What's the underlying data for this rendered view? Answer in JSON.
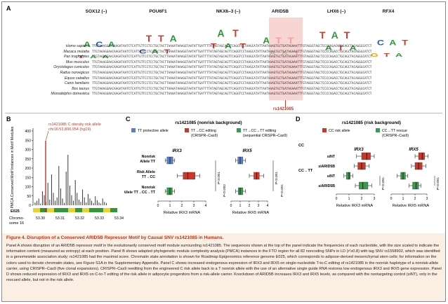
{
  "panel_a": {
    "label": "A",
    "tfs": [
      "SOX12 (–)",
      "POU6F1",
      "NKX6–3 (–)",
      "ARID5B",
      "LHX6 (–)",
      "RFX4"
    ],
    "logos": [
      "TAACAA",
      "CTATTA",
      "TAATT",
      "AATATT",
      "TAATTA",
      "GCTAAT"
    ],
    "species": [
      "Homo sapiens",
      "Macaca mulatta",
      "Pan troglodytes",
      "Mus musculus",
      "Oryctolagus cuniculus",
      "Rattus norvegicus",
      "Equus caballus",
      "Canis familiaris",
      "Bos taurus",
      "Monodelphis domestica"
    ],
    "sequences": [
      "TTGTAAAGGAACAAGATAATCTCATTGTTCCTCCTGCTACTTAAAATAAAGGTAATATTGATTTTATAGTAGCAGTTCAGGTCCTAAGCATATTAATAAAGTGCTGATAGAAATTTGTAGGGTAGCTCCCCAGACCTGCAGCTACAGGGCATCT",
      "TTGTAAAGGAACAAGATAATCTCATTGTTCCTCCTGCTACTTAAAATAAAGGTAATATTGATTTTATAGTAGCAGTTCAGGTCCTAAGCATATTAATAAAGTGCTGATAGAAATTTGTAGGGTAGCTCCCCAGACCTGCAGCTACAGGGCATCT",
      "TTGTAAAGGAACAAGATAATCTCATTGTTCCTCCTGCTACTTAAAATAAAGGTAATATTGATTTTATAGTAGCAGTTCAGGTCCTAAGCATATTAATAAAGTGCTGATAGAAATTTGTAGGGTAGCTCCCCAGACCTGCAGCTACAGGGCATCT",
      "TTGTAAAGGAACAAGATAATCTCATTGTTCCTCCTGCTACTTAAAATAAAGGTAATATTGATTTTATAGTAGCAGTTCAGGTCCTAAGCATATTAATAAAGTGCTGATAGAAATTTGTAGGGTAGCTCCCCAGACCTGCAGCTACAGGGCATCT",
      "TTGTAAAGGAACAAGATAATCTCATTGTTCCTCCTGCTACTTAAAATAAAGGTAATATTGATTTTATAGTAGCAGTTCAGGTCCTAAGCATATTAATAAAGTGCTGATAGAAATTTGTAGGGTAGCTCCCCAGACCTGCAGCTACAGGGCATCT",
      "TTGTAAAGGAACAAGATAATCTCATTGTTCCTCCTGCTACTTAAAATAAAGGTAATATTGATTTTATAGTAGCAGTTCAGGTCCTAAGCATATTAATAAAGTGCTGATAGAAATTTGTAGGGTAGCTCCCCAGACCTGCAGCTACAGGGCATCT",
      "TTGTAAAGGAACAAGATAATCTCATTGTTCCTCCTGCTACTTAAAATAAAGGTAATATTGATTTTATAGTAGCAGTTCAGGTCCTAAGCATATTAATAAAGTGCTGATAGAAATTTGTAGGGTAGCTCCCCAGACCTGCAGCTACAGGGCATCT",
      "TTGTAAAGGAACAAGATAATCTCATTGTTCCTCCTGCTACTTAAAATAAAGGTAATATTGATTTTATAGTAGCAGTTCAGGTCCTAAGCATATTAATAAAGTGCTGATAGAAATTTGTAGGGTAGCTCCCCAGACCTGCAGCTACAGGGCATCT",
      "TTGTAAAGGAACAAGATAATCTCATTGTTCCTCCTGCTACTTAAAATAAAGGTAATATTGATTTTATAGTAGCAGTTCAGGTCCTAAGCATATTAATAAAGTGCTGATAGAAATTTGTAGGGTAGCTCCCCAGACCTGCAGCTACAGGGCATCT",
      "TTGTAAAGGAACAAGATAATCTCATTGTTCCTCCTGCTACTTAAAATAAAGGTAATATTGATTTTATAGTAGCAGTTCAGGTCCTAAGCATATTAATAAAGTGCTGATAGAAATTTGTAGGGTAGCTCCCCAGACCTGCAGCTACAGGGCATCT"
    ],
    "snp": "rs1421085",
    "highlight_color": "#f4c7c3"
  },
  "panel_b": {
    "label": "B",
    "annotation": "rs1421085 C obesity risk allele",
    "annotation2": "chr16:53,800,954 (hg19)",
    "ylabel": "PMCA Conserved Motif Instances in Motif Modules",
    "yticks": [
      "0",
      "50",
      "100",
      "150",
      "200",
      "250",
      "300",
      "350",
      "400"
    ],
    "track_label": "E025",
    "xlabel": "Chromo-some 16",
    "xticks": [
      "53.30",
      "53.31",
      "53.32",
      "53.33",
      "53.34 Mb"
    ],
    "bar_color": "#222222",
    "peak_color": "#c0392b"
  },
  "panel_c": {
    "label": "C",
    "title": "rs1421085 (nonrisk background)",
    "legend": [
      "TT protective allele",
      "TT→CC editing (CRISPR–Cas9)",
      "TT→CC→TT editing (sequential CRISPR–Cas9)"
    ],
    "row_labels": [
      "Nonrisk Allele TT",
      "Risk Allele TT→CC",
      "Nonrisk Allele TT→CC→TT"
    ],
    "plot1_title": "IRX3",
    "plot2_title": "IRX5",
    "xlabel1": "Relative IRX3 mRNA",
    "xlabel2": "Relative IRX5 mRNA",
    "xticks": [
      "0",
      "1",
      "2",
      "3",
      "4"
    ],
    "pvals": [
      "P<0.001",
      "P<0.002",
      "P<0.001",
      "P<0.001"
    ],
    "colors": [
      "#5b7fc7",
      "#c8382b",
      "#3a9a4e"
    ]
  },
  "panel_d": {
    "label": "D",
    "title": "rs1421085 (risk background)",
    "legend": [
      "CC risk allele",
      "CC→TT rescue (CRISPR–Cas9)"
    ],
    "groups": [
      "CC",
      "CC→TT"
    ],
    "row_labels": [
      "siNT",
      "siARID5B",
      "siNT",
      "siARID5B"
    ],
    "plot1_title": "IRX3",
    "plot2_title": "IRX5",
    "xlabel1": "Relative IRX3 mRNA",
    "xlabel2": "Relative IRX5 mRNA",
    "xticks1": [
      "0",
      "1",
      "2",
      "3"
    ],
    "xticks2": [
      "0",
      "1",
      "2",
      "3"
    ],
    "pvals": [
      "P<0.001",
      "P<0.001",
      "P<0.001",
      "P<0.001"
    ],
    "colors": [
      "#c8382b",
      "#3a9a4e"
    ]
  },
  "caption": {
    "title": "Figure 4. Disruption of a Conserved ARID5B Repressor Motif by Causal SNV rs1421085 in Humans.",
    "body": "Panel A shows disruption of an ARID5B repressor motif in the evolutionarily conserved motif module surrounding rs1421085. The sequences shown at the top of the panel indicate the frequencies of each nucleotide, with the size scaled to indicate the information content (measured as entropy) at each position. Panel B shows adapted phylogenetic module complexity analysis (PMCA) instances in the FTO region for all 82 noncoding SNPs in LD (r²≥0.8) with tag SNV rs1558902, which was identified in a genomewide association study; rs1421085 had the maximal score. Chromatin state annotation is shown for Roadmap Epigenomics reference genome E025, which corresponds to adipose-derived mesenchymal stem cells; for information on the colors used to denote chromatin states, see Figure S1A in the Supplementary Appendix. Panel C shows increased endogenous expression of IRX3 and IRX5 on single-nucleotide T-to-C editing of rs1421085 in the nonrisk haplotype of a nonrisk-allele carrier, using CRISPR–Cas9 (five clonal expansions). CRISPR–Cas9 reediting from the engineered C risk allele back to a T nonrisk allele with the use of an alternative single guide RNA restores low endogenous IRX3 and IRX5 gene expression. Panel D shows reduced expression of IRX3 and IRX5 on C-to-T editing of the risk allele in adipocyte progenitors from a risk-allele carrier. Knockdown of ARID5B increases IRX3 and IRX5 levels, as compared with the nontargeting control (siNT), only in the rescued allele, but not in the risk allele."
  }
}
